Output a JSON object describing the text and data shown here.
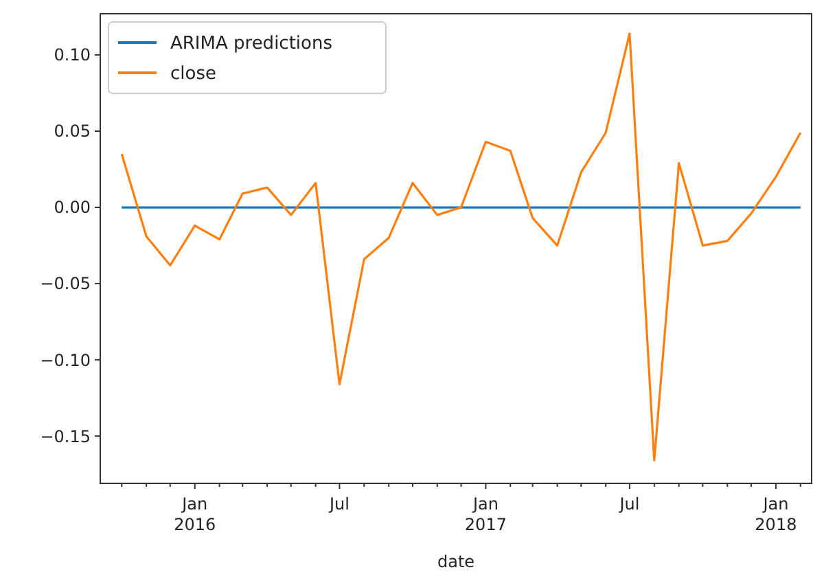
{
  "chart_data": {
    "type": "line",
    "xlabel": "date",
    "x": [
      "2015-10",
      "2015-11",
      "2015-12",
      "2016-01",
      "2016-02",
      "2016-03",
      "2016-04",
      "2016-05",
      "2016-06",
      "2016-07",
      "2016-08",
      "2016-09",
      "2016-10",
      "2016-11",
      "2016-12",
      "2017-01",
      "2017-02",
      "2017-03",
      "2017-04",
      "2017-05",
      "2017-06",
      "2017-07",
      "2017-08",
      "2017-09",
      "2017-10",
      "2017-11",
      "2017-12",
      "2018-01",
      "2018-02"
    ],
    "series": [
      {
        "name": "ARIMA predictions",
        "color": "#1f77b4",
        "values": [
          0,
          0,
          0,
          0,
          0,
          0,
          0,
          0,
          0,
          0,
          0,
          0,
          0,
          0,
          0,
          0,
          0,
          0,
          0,
          0,
          0,
          0,
          0,
          0,
          0,
          0,
          0,
          0,
          0
        ]
      },
      {
        "name": "close",
        "color": "#ff7f0e",
        "values": [
          0.035,
          -0.019,
          -0.038,
          -0.012,
          -0.021,
          0.009,
          0.013,
          -0.005,
          0.016,
          -0.116,
          -0.034,
          -0.02,
          0.016,
          -0.005,
          0,
          0.043,
          0.037,
          -0.007,
          -0.025,
          0.023,
          0.049,
          0.114,
          -0.166,
          0.029,
          -0.025,
          -0.022,
          -0.004,
          0.02,
          0.049
        ]
      }
    ],
    "xlim": [
      "2015-09-04",
      "2018-02-15"
    ],
    "xticks": [
      {
        "value": "2015-10",
        "label": null
      },
      {
        "value": "2015-11",
        "label": null
      },
      {
        "value": "2015-12",
        "label": null
      },
      {
        "value": "2016-01",
        "label": "Jan\n2016"
      },
      {
        "value": "2016-02",
        "label": null
      },
      {
        "value": "2016-03",
        "label": null
      },
      {
        "value": "2016-04",
        "label": null
      },
      {
        "value": "2016-05",
        "label": null
      },
      {
        "value": "2016-06",
        "label": null
      },
      {
        "value": "2016-07",
        "label": "Jul"
      },
      {
        "value": "2016-08",
        "label": null
      },
      {
        "value": "2016-09",
        "label": null
      },
      {
        "value": "2016-10",
        "label": null
      },
      {
        "value": "2016-11",
        "label": null
      },
      {
        "value": "2016-12",
        "label": null
      },
      {
        "value": "2017-01",
        "label": "Jan\n2017"
      },
      {
        "value": "2017-02",
        "label": null
      },
      {
        "value": "2017-03",
        "label": null
      },
      {
        "value": "2017-04",
        "label": null
      },
      {
        "value": "2017-05",
        "label": null
      },
      {
        "value": "2017-06",
        "label": null
      },
      {
        "value": "2017-07",
        "label": "Jul"
      },
      {
        "value": "2017-08",
        "label": null
      },
      {
        "value": "2017-09",
        "label": null
      },
      {
        "value": "2017-10",
        "label": null
      },
      {
        "value": "2017-11",
        "label": null
      },
      {
        "value": "2017-12",
        "label": null
      },
      {
        "value": "2018-01",
        "label": "Jan\n2018"
      },
      {
        "value": "2018-02",
        "label": null
      }
    ],
    "ylim": [
      -0.181,
      0.127
    ],
    "yticks": [
      {
        "value": -0.15,
        "label": "−0.15"
      },
      {
        "value": -0.1,
        "label": "−0.10"
      },
      {
        "value": -0.05,
        "label": "−0.05"
      },
      {
        "value": 0,
        "label": "0.00"
      },
      {
        "value": 0.05,
        "label": "0.05"
      },
      {
        "value": 0.1,
        "label": "0.10"
      }
    ],
    "legend": "top left",
    "grid": false,
    "marker": "none",
    "line_style": "solid"
  }
}
